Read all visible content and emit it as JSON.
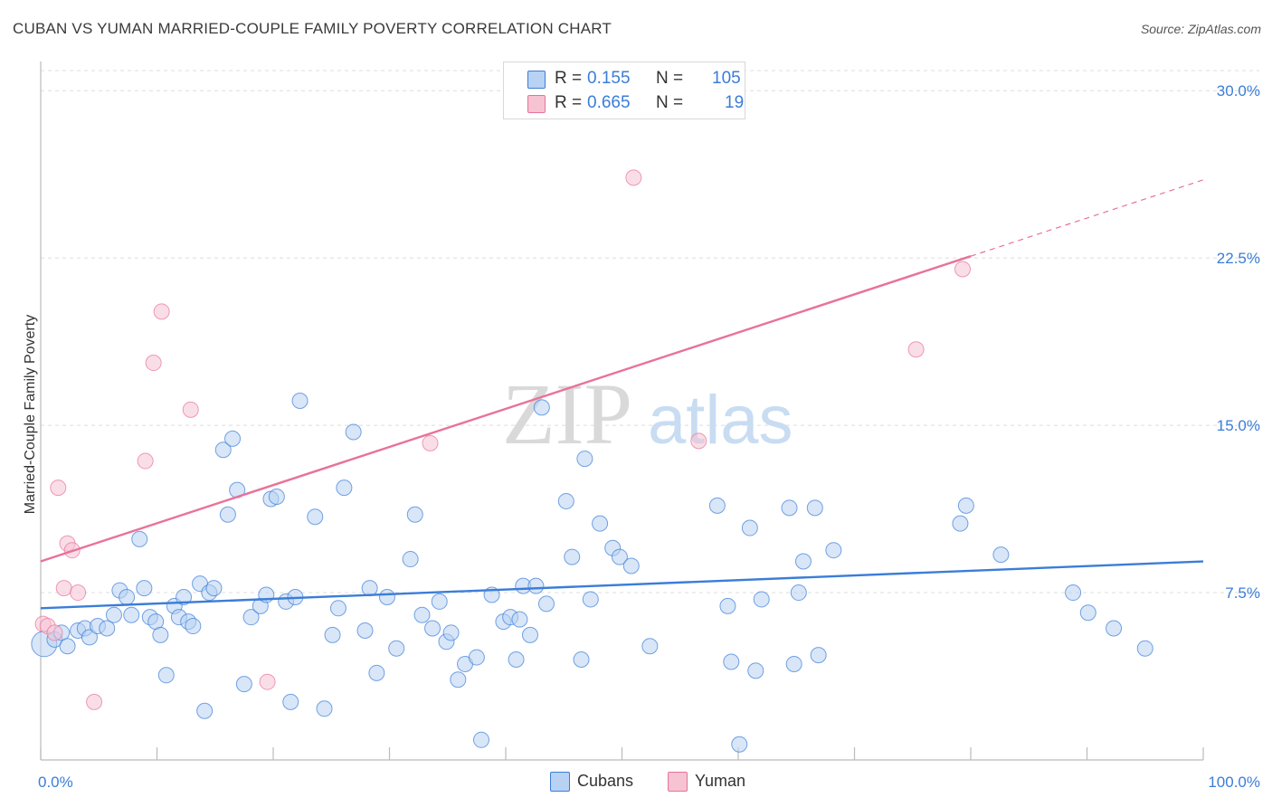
{
  "title": "CUBAN VS YUMAN MARRIED-COUPLE FAMILY POVERTY CORRELATION CHART",
  "source": "Source: ZipAtlas.com",
  "watermark": {
    "zip": "ZIP",
    "atlas": "atlas"
  },
  "legend": {
    "rows": [
      {
        "r_label": "R =",
        "r_value": "0.155",
        "n_label": "N =",
        "n_value": "105"
      },
      {
        "r_label": "R =",
        "r_value": "0.665",
        "n_label": "N =",
        "n_value": "19"
      }
    ]
  },
  "bottom_legend": {
    "cubans": "Cubans",
    "yuman": "Yuman"
  },
  "colors": {
    "blue": "#3b7dd8",
    "blue_fill": "#b8d2f3",
    "pink": "#e8729a",
    "pink_fill": "#f6c3d3",
    "grid": "#dddddd"
  },
  "chart_data": {
    "type": "scatter",
    "title": "CUBAN VS YUMAN MARRIED-COUPLE FAMILY POVERTY CORRELATION CHART",
    "xlabel": "",
    "ylabel": "Married-Couple Family Poverty",
    "xlim": [
      0,
      100
    ],
    "ylim": [
      0,
      30.9
    ],
    "x_tick_labels": [
      "0.0%",
      "100.0%"
    ],
    "y_ticks": [
      7.5,
      15.0,
      22.5,
      30.0
    ],
    "y_tick_labels": [
      "7.5%",
      "15.0%",
      "22.5%",
      "30.0%"
    ],
    "grid": true,
    "series": [
      {
        "name": "Cubans",
        "color": "#3b7dd8",
        "R": 0.155,
        "N": 105,
        "trend": {
          "x": [
            0,
            100
          ],
          "y": [
            6.8,
            8.9
          ],
          "solid_to": 100
        },
        "points": [
          [
            0.3,
            5.2
          ],
          [
            1.2,
            5.4
          ],
          [
            1.8,
            5.7
          ],
          [
            2.3,
            5.1
          ],
          [
            3.2,
            5.8
          ],
          [
            3.8,
            5.9
          ],
          [
            4.2,
            5.5
          ],
          [
            4.9,
            6.0
          ],
          [
            5.7,
            5.9
          ],
          [
            6.3,
            6.5
          ],
          [
            6.8,
            7.6
          ],
          [
            7.4,
            7.3
          ],
          [
            7.8,
            6.5
          ],
          [
            8.5,
            9.9
          ],
          [
            8.9,
            7.7
          ],
          [
            9.4,
            6.4
          ],
          [
            9.9,
            6.2
          ],
          [
            10.3,
            5.6
          ],
          [
            10.8,
            3.8
          ],
          [
            11.5,
            6.9
          ],
          [
            11.9,
            6.4
          ],
          [
            12.3,
            7.3
          ],
          [
            12.7,
            6.2
          ],
          [
            13.1,
            6.0
          ],
          [
            13.7,
            7.9
          ],
          [
            14.1,
            2.2
          ],
          [
            14.5,
            7.5
          ],
          [
            14.9,
            7.7
          ],
          [
            15.7,
            13.9
          ],
          [
            16.1,
            11.0
          ],
          [
            16.5,
            14.4
          ],
          [
            16.9,
            12.1
          ],
          [
            17.5,
            3.4
          ],
          [
            18.1,
            6.4
          ],
          [
            18.9,
            6.9
          ],
          [
            19.4,
            7.4
          ],
          [
            19.8,
            11.7
          ],
          [
            20.3,
            11.8
          ],
          [
            21.1,
            7.1
          ],
          [
            21.5,
            2.6
          ],
          [
            21.9,
            7.3
          ],
          [
            22.3,
            16.1
          ],
          [
            23.6,
            10.9
          ],
          [
            24.4,
            2.3
          ],
          [
            25.1,
            5.6
          ],
          [
            25.6,
            6.8
          ],
          [
            26.1,
            12.2
          ],
          [
            26.9,
            14.7
          ],
          [
            27.9,
            5.8
          ],
          [
            28.3,
            7.7
          ],
          [
            28.9,
            3.9
          ],
          [
            29.8,
            7.3
          ],
          [
            30.6,
            5.0
          ],
          [
            31.8,
            9.0
          ],
          [
            32.2,
            11.0
          ],
          [
            32.8,
            6.5
          ],
          [
            33.7,
            5.9
          ],
          [
            34.3,
            7.1
          ],
          [
            34.9,
            5.3
          ],
          [
            35.3,
            5.7
          ],
          [
            35.9,
            3.6
          ],
          [
            36.5,
            4.3
          ],
          [
            37.5,
            4.6
          ],
          [
            37.9,
            0.9
          ],
          [
            38.8,
            7.4
          ],
          [
            39.8,
            6.2
          ],
          [
            40.4,
            6.4
          ],
          [
            40.9,
            4.5
          ],
          [
            41.2,
            6.3
          ],
          [
            41.5,
            7.8
          ],
          [
            42.1,
            5.6
          ],
          [
            42.6,
            7.8
          ],
          [
            43.1,
            15.8
          ],
          [
            43.5,
            7.0
          ],
          [
            45.2,
            11.6
          ],
          [
            45.7,
            9.1
          ],
          [
            46.5,
            4.5
          ],
          [
            46.8,
            13.5
          ],
          [
            47.3,
            7.2
          ],
          [
            48.1,
            10.6
          ],
          [
            49.2,
            9.5
          ],
          [
            49.8,
            9.1
          ],
          [
            50.8,
            8.7
          ],
          [
            52.4,
            5.1
          ],
          [
            58.2,
            11.4
          ],
          [
            59.1,
            6.9
          ],
          [
            59.4,
            4.4
          ],
          [
            60.1,
            0.7
          ],
          [
            61.0,
            10.4
          ],
          [
            61.5,
            4.0
          ],
          [
            62.0,
            7.2
          ],
          [
            64.4,
            11.3
          ],
          [
            64.8,
            4.3
          ],
          [
            65.2,
            7.5
          ],
          [
            65.6,
            8.9
          ],
          [
            66.6,
            11.3
          ],
          [
            66.9,
            4.7
          ],
          [
            68.2,
            9.4
          ],
          [
            79.1,
            10.6
          ],
          [
            79.6,
            11.4
          ],
          [
            82.6,
            9.2
          ],
          [
            88.8,
            7.5
          ],
          [
            90.1,
            6.6
          ],
          [
            92.3,
            5.9
          ],
          [
            95.0,
            5.0
          ]
        ]
      },
      {
        "name": "Yuman",
        "color": "#e8729a",
        "R": 0.665,
        "N": 19,
        "trend": {
          "x": [
            0,
            100
          ],
          "y": [
            8.9,
            26.0
          ],
          "solid_to": 80
        },
        "points": [
          [
            0.2,
            6.1
          ],
          [
            0.6,
            6.0
          ],
          [
            1.2,
            5.7
          ],
          [
            1.5,
            12.2
          ],
          [
            2.0,
            7.7
          ],
          [
            2.3,
            9.7
          ],
          [
            2.7,
            9.4
          ],
          [
            3.2,
            7.5
          ],
          [
            4.6,
            2.6
          ],
          [
            9.0,
            13.4
          ],
          [
            9.7,
            17.8
          ],
          [
            10.4,
            20.1
          ],
          [
            12.9,
            15.7
          ],
          [
            19.5,
            3.5
          ],
          [
            33.5,
            14.2
          ],
          [
            51.0,
            26.1
          ],
          [
            56.6,
            14.3
          ],
          [
            75.3,
            18.4
          ],
          [
            79.3,
            22.0
          ]
        ]
      }
    ]
  }
}
